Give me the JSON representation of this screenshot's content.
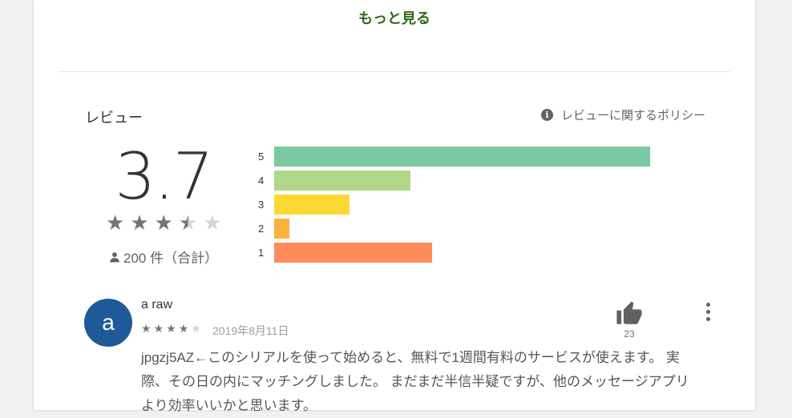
{
  "more_link": "もっと見る",
  "reviews_section": {
    "title": "レビュー",
    "policy_label": "レビューに関するポリシー",
    "score": "3.7",
    "rating_stars": 3.5,
    "count_label": "200 件（合計）",
    "bars": [
      {
        "label": "5",
        "fraction": 1.0,
        "color": "#7ac9a2"
      },
      {
        "label": "4",
        "fraction": 0.362,
        "color": "#aed888"
      },
      {
        "label": "3",
        "fraction": 0.201,
        "color": "#fdd835"
      },
      {
        "label": "2",
        "fraction": 0.04,
        "color": "#ffb13d"
      },
      {
        "label": "1",
        "fraction": 0.42,
        "color": "#ff8b5a"
      }
    ]
  },
  "review": {
    "avatar_letter": "a",
    "author": "a raw",
    "stars": 4,
    "date": "2019年8月11日",
    "helpful_count": "23",
    "text": "jpgzj5AZ←このシリアルを使って始めると、無料で1週間有料のサービスが使えます。 実際、その日の内にマッチングしました。 まだまだ半信半疑ですが、他のメッセージアプリより効率いいかと思います。"
  },
  "colors": {
    "accent_green": "#33691e",
    "avatar_blue": "#1e5a97"
  }
}
